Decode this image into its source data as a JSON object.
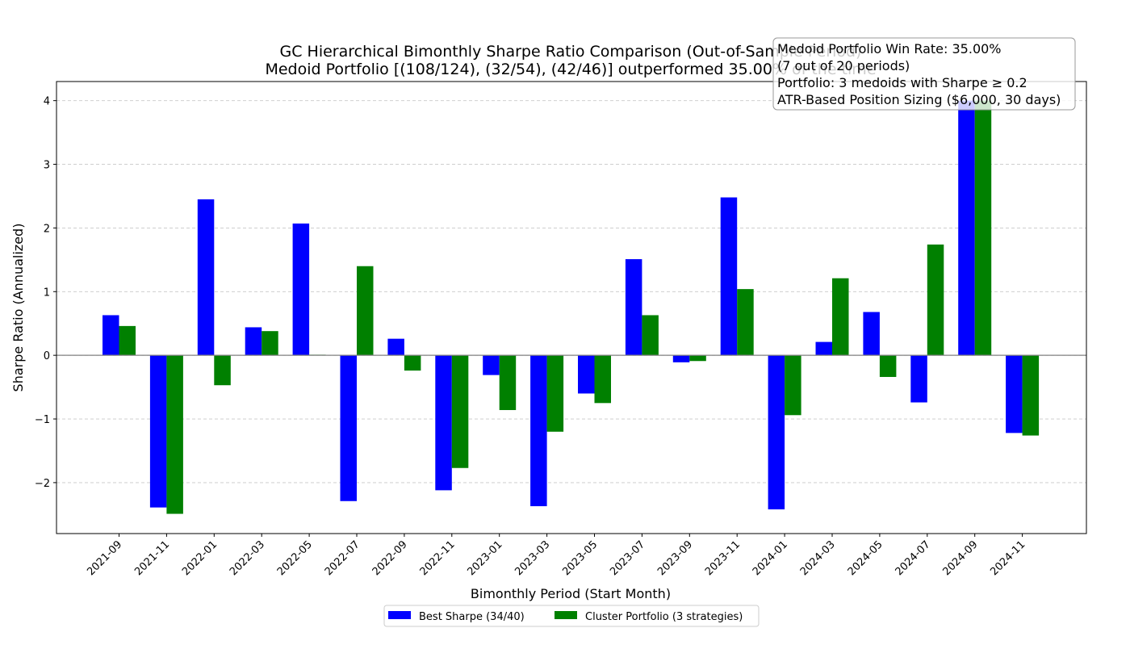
{
  "chart_data": {
    "type": "bar",
    "title_line1": "GC Hierarchical Bimonthly Sharpe Ratio Comparison (Out-of-Sample Period)",
    "title_line2": "Medoid Portfolio [(108/124), (32/54), (42/46)] outperformed 35.00% of the time",
    "xlabel": "Bimonthly Period (Start Month)",
    "ylabel": "Sharpe Ratio (Annualized)",
    "ylim": [
      -2.8,
      4.3
    ],
    "yticks": [
      -2,
      -1,
      0,
      1,
      2,
      3,
      4
    ],
    "ytick_labels": [
      "−2",
      "−1",
      "0",
      "1",
      "2",
      "3",
      "4"
    ],
    "grid": "horizontal dashed",
    "legend_position": "bottom-center",
    "categories": [
      "2021-09",
      "2021-11",
      "2022-01",
      "2022-03",
      "2022-05",
      "2022-07",
      "2022-09",
      "2022-11",
      "2023-01",
      "2023-03",
      "2023-05",
      "2023-07",
      "2023-09",
      "2023-11",
      "2024-01",
      "2024-03",
      "2024-05",
      "2024-07",
      "2024-09",
      "2024-11"
    ],
    "series": [
      {
        "name": "Best Sharpe (34/40)",
        "color": "#0000ff",
        "values": [
          0.63,
          -2.39,
          2.45,
          0.44,
          2.07,
          -2.29,
          0.26,
          -2.12,
          -0.31,
          -2.37,
          -0.6,
          1.51,
          -0.11,
          2.48,
          -2.42,
          0.21,
          0.68,
          -0.74,
          4.0,
          -1.22
        ]
      },
      {
        "name": "Cluster Portfolio (3 strategies)",
        "color": "#008000",
        "values": [
          0.46,
          -2.49,
          -0.47,
          0.38,
          0.01,
          1.4,
          -0.24,
          -1.77,
          -0.86,
          -1.2,
          -0.75,
          0.63,
          -0.09,
          1.04,
          -0.94,
          1.21,
          -0.34,
          1.74,
          4.0,
          -1.26
        ]
      }
    ],
    "info_box": [
      "Medoid Portfolio Win Rate: 35.00%",
      "(7 out of 20 periods)",
      "Portfolio: 3 medoids with Sharpe ≥ 0.2",
      "ATR-Based Position Sizing ($6,000, 30 days)"
    ]
  }
}
